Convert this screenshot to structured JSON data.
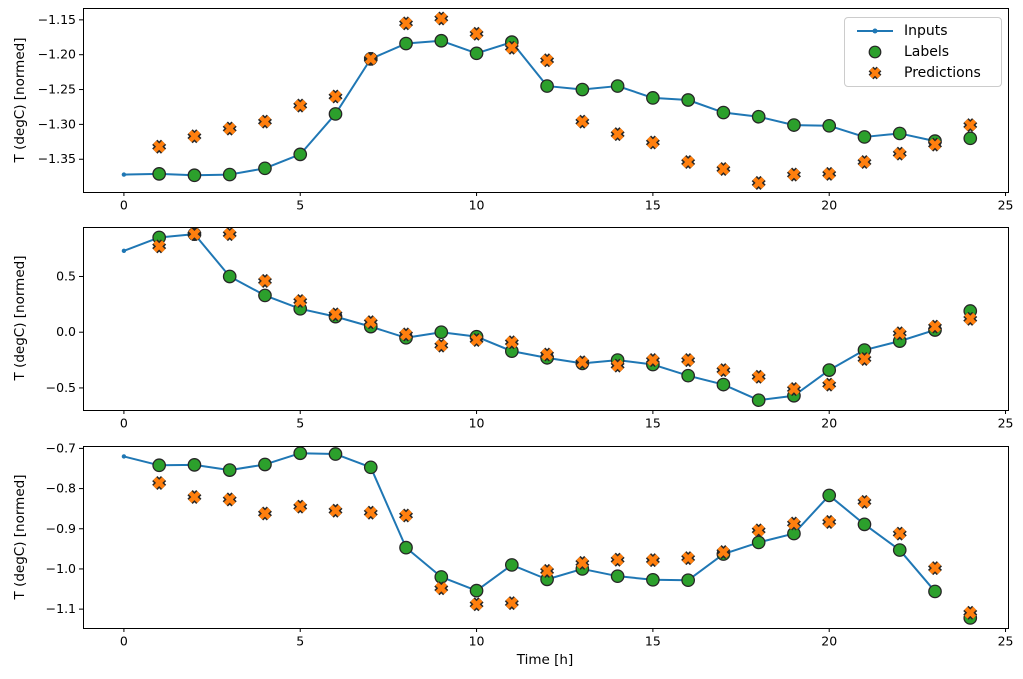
{
  "figure": {
    "xlabel": "Time [h]",
    "colors": {
      "inputs": "#1f77b4",
      "labels": "#2ca02c",
      "predictions": "#ff7f0e",
      "marker_edge": "#262626",
      "axis": "#000000",
      "legend_border": "#cccccc",
      "background": "#ffffff"
    },
    "legend": {
      "position": "upper right",
      "items": [
        {
          "label": "Inputs",
          "marker": "line-dot",
          "color_key": "inputs"
        },
        {
          "label": "Labels",
          "marker": "circle",
          "color_key": "labels"
        },
        {
          "label": "Predictions",
          "marker": "x",
          "color_key": "predictions"
        }
      ]
    }
  },
  "chart_data": [
    {
      "type": "line",
      "title": "",
      "xlabel": "",
      "ylabel": "T (degC) [normed]",
      "grid": false,
      "xlim": [
        -1.16,
        25.07
      ],
      "ylim": [
        -1.397,
        -1.133
      ],
      "xticks": [
        0,
        5,
        10,
        15,
        20,
        25
      ],
      "xtick_labels": [
        "0",
        "5",
        "10",
        "15",
        "20",
        "25"
      ],
      "yticks": [
        -1.15,
        -1.2,
        -1.25,
        -1.3,
        -1.35
      ],
      "ytick_labels": [
        "−1.15",
        "−1.20",
        "−1.25",
        "−1.30",
        "−1.35"
      ],
      "series": [
        {
          "name": "Inputs",
          "kind": "line-dot",
          "color_key": "inputs",
          "x": [
            0,
            1,
            2,
            3,
            4,
            5,
            6,
            7,
            8,
            9,
            10,
            11,
            12,
            13,
            14,
            15,
            16,
            17,
            18,
            19,
            20,
            21,
            22,
            23
          ],
          "y": [
            -1.372,
            -1.371,
            -1.373,
            -1.372,
            -1.363,
            -1.343,
            -1.285,
            -1.206,
            -1.184,
            -1.18,
            -1.198,
            -1.182,
            -1.245,
            -1.25,
            -1.245,
            -1.262,
            -1.265,
            -1.283,
            -1.289,
            -1.301,
            -1.302,
            -1.318,
            -1.313,
            -1.324
          ]
        },
        {
          "name": "Labels",
          "kind": "circle",
          "color_key": "labels",
          "x": [
            1,
            2,
            3,
            4,
            5,
            6,
            7,
            8,
            9,
            10,
            11,
            12,
            13,
            14,
            15,
            16,
            17,
            18,
            19,
            20,
            21,
            22,
            23,
            24
          ],
          "y": [
            -1.371,
            -1.373,
            -1.372,
            -1.363,
            -1.343,
            -1.285,
            -1.206,
            -1.184,
            -1.18,
            -1.198,
            -1.182,
            -1.245,
            -1.25,
            -1.245,
            -1.262,
            -1.265,
            -1.283,
            -1.289,
            -1.301,
            -1.302,
            -1.318,
            -1.313,
            -1.324,
            -1.32
          ]
        },
        {
          "name": "Predictions",
          "kind": "x",
          "color_key": "predictions",
          "x": [
            1,
            2,
            3,
            4,
            5,
            6,
            7,
            8,
            9,
            10,
            11,
            12,
            13,
            14,
            15,
            16,
            17,
            18,
            19,
            20,
            21,
            22,
            23,
            24
          ],
          "y": [
            -1.332,
            -1.317,
            -1.306,
            -1.296,
            -1.273,
            -1.26,
            -1.206,
            -1.155,
            -1.148,
            -1.17,
            -1.19,
            -1.208,
            -1.296,
            -1.314,
            -1.326,
            -1.354,
            -1.364,
            -1.384,
            -1.372,
            -1.371,
            -1.354,
            -1.342,
            -1.329,
            -1.301
          ]
        }
      ]
    },
    {
      "type": "line",
      "title": "",
      "xlabel": "",
      "ylabel": "T (degC) [normed]",
      "grid": false,
      "xlim": [
        -1.16,
        25.07
      ],
      "ylim": [
        -0.698,
        0.944
      ],
      "xticks": [
        0,
        5,
        10,
        15,
        20,
        25
      ],
      "xtick_labels": [
        "0",
        "5",
        "10",
        "15",
        "20",
        "25"
      ],
      "yticks": [
        0.5,
        0.0,
        -0.5
      ],
      "ytick_labels": [
        "0.5",
        "0.0",
        "−0.5"
      ],
      "series": [
        {
          "name": "Inputs",
          "kind": "line-dot",
          "color_key": "inputs",
          "x": [
            0,
            1,
            2,
            3,
            4,
            5,
            6,
            7,
            8,
            9,
            10,
            11,
            12,
            13,
            14,
            15,
            16,
            17,
            18,
            19,
            20,
            21,
            22,
            23
          ],
          "y": [
            0.73,
            0.85,
            0.88,
            0.5,
            0.33,
            0.21,
            0.14,
            0.05,
            -0.05,
            0.0,
            -0.04,
            -0.17,
            -0.23,
            -0.28,
            -0.25,
            -0.29,
            -0.39,
            -0.47,
            -0.61,
            -0.57,
            -0.34,
            -0.16,
            -0.08,
            0.02
          ]
        },
        {
          "name": "Labels",
          "kind": "circle",
          "color_key": "labels",
          "x": [
            1,
            2,
            3,
            4,
            5,
            6,
            7,
            8,
            9,
            10,
            11,
            12,
            13,
            14,
            15,
            16,
            17,
            18,
            19,
            20,
            21,
            22,
            23,
            24
          ],
          "y": [
            0.85,
            0.88,
            0.5,
            0.33,
            0.21,
            0.14,
            0.05,
            -0.05,
            0.0,
            -0.04,
            -0.17,
            -0.23,
            -0.28,
            -0.25,
            -0.29,
            -0.39,
            -0.47,
            -0.61,
            -0.57,
            -0.34,
            -0.16,
            -0.08,
            0.02,
            0.19
          ]
        },
        {
          "name": "Predictions",
          "kind": "x",
          "color_key": "predictions",
          "x": [
            1,
            2,
            3,
            4,
            5,
            6,
            7,
            8,
            9,
            10,
            11,
            12,
            13,
            14,
            15,
            16,
            17,
            18,
            19,
            20,
            21,
            22,
            23,
            24
          ],
          "y": [
            0.77,
            0.88,
            0.88,
            0.46,
            0.28,
            0.16,
            0.09,
            -0.02,
            -0.12,
            -0.07,
            -0.09,
            -0.2,
            -0.27,
            -0.3,
            -0.25,
            -0.25,
            -0.34,
            -0.4,
            -0.51,
            -0.47,
            -0.24,
            -0.01,
            0.05,
            0.12
          ]
        }
      ]
    },
    {
      "type": "line",
      "title": "",
      "xlabel": "Time [h]",
      "ylabel": "T (degC) [normed]",
      "grid": false,
      "xlim": [
        -1.16,
        25.07
      ],
      "ylim": [
        -1.147,
        -0.694
      ],
      "xticks": [
        0,
        5,
        10,
        15,
        20,
        25
      ],
      "xtick_labels": [
        "0",
        "5",
        "10",
        "15",
        "20",
        "25"
      ],
      "yticks": [
        -0.7,
        -0.8,
        -0.9,
        -1.0,
        -1.1
      ],
      "ytick_labels": [
        "−0.7",
        "−0.8",
        "−0.9",
        "−1.0",
        "−1.1"
      ],
      "series": [
        {
          "name": "Inputs",
          "kind": "line-dot",
          "color_key": "inputs",
          "x": [
            0,
            1,
            2,
            3,
            4,
            5,
            6,
            7,
            8,
            9,
            10,
            11,
            12,
            13,
            14,
            15,
            16,
            17,
            18,
            19,
            20,
            21,
            22,
            23
          ],
          "y": [
            -0.72,
            -0.742,
            -0.741,
            -0.754,
            -0.74,
            -0.712,
            -0.714,
            -0.747,
            -0.947,
            -1.02,
            -1.054,
            -0.99,
            -1.026,
            -1.0,
            -1.018,
            -1.027,
            -1.028,
            -0.963,
            -0.934,
            -0.912,
            -0.817,
            -0.889,
            -0.953,
            -1.056
          ]
        },
        {
          "name": "Labels",
          "kind": "circle",
          "color_key": "labels",
          "x": [
            1,
            2,
            3,
            4,
            5,
            6,
            7,
            8,
            9,
            10,
            11,
            12,
            13,
            14,
            15,
            16,
            17,
            18,
            19,
            20,
            21,
            22,
            23,
            24
          ],
          "y": [
            -0.742,
            -0.741,
            -0.754,
            -0.74,
            -0.712,
            -0.714,
            -0.747,
            -0.947,
            -1.02,
            -1.054,
            -0.99,
            -1.026,
            -1.0,
            -1.018,
            -1.027,
            -1.028,
            -0.963,
            -0.934,
            -0.912,
            -0.817,
            -0.889,
            -0.953,
            -1.056,
            -1.122
          ]
        },
        {
          "name": "Predictions",
          "kind": "x",
          "color_key": "predictions",
          "x": [
            1,
            2,
            3,
            4,
            5,
            6,
            7,
            8,
            9,
            10,
            11,
            12,
            13,
            14,
            15,
            16,
            17,
            18,
            19,
            20,
            21,
            22,
            23,
            24
          ],
          "y": [
            -0.786,
            -0.821,
            -0.827,
            -0.862,
            -0.845,
            -0.855,
            -0.86,
            -0.867,
            -1.048,
            -1.088,
            -1.085,
            -1.005,
            -0.985,
            -0.977,
            -0.978,
            -0.973,
            -0.958,
            -0.904,
            -0.887,
            -0.883,
            -0.833,
            -0.912,
            -0.998,
            -1.109
          ]
        }
      ]
    }
  ]
}
